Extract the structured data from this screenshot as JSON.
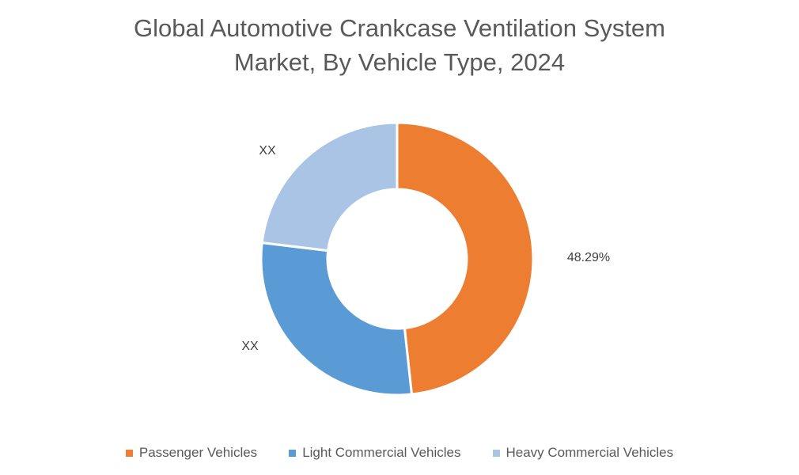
{
  "chart_data": {
    "type": "pie",
    "variant": "donut",
    "title": "Global Automotive Crankcase Ventilation System Market, By Vehicle Type, 2024",
    "title_lines": [
      "Global Automotive Crankcase Ventilation System",
      "Market, By Vehicle Type, 2024"
    ],
    "categories": [
      "Passenger Vehicles",
      "Light Commercial Vehicles",
      "Heavy Commercial Vehicles"
    ],
    "values": [
      48.29,
      28.6,
      23.11
    ],
    "data_labels": [
      "48.29%",
      "XX",
      "XX"
    ],
    "colors": [
      "#ED7D31",
      "#5B9BD5",
      "#A9C4E4"
    ],
    "legend": "bottom"
  }
}
